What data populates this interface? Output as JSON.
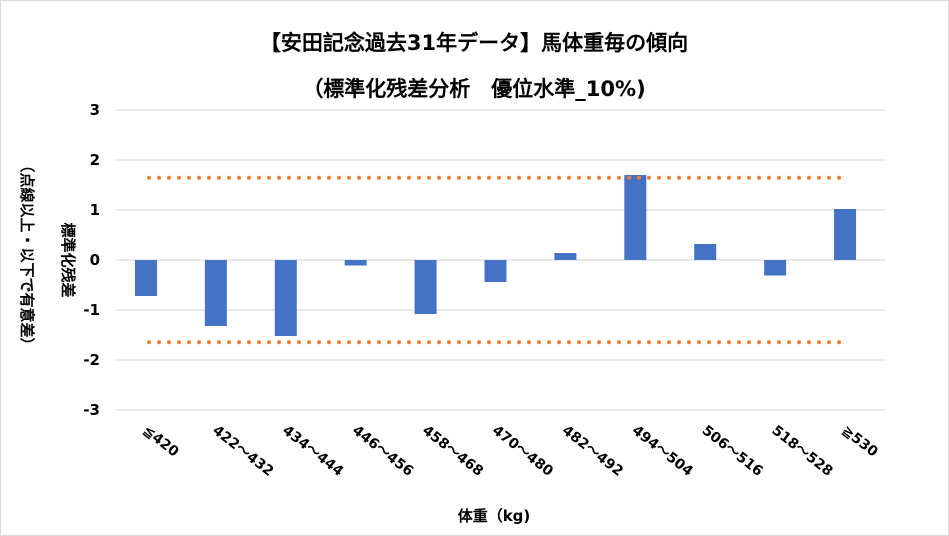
{
  "chart_data": {
    "type": "bar",
    "title": "【安田記念過去31年データ】馬体重毎の傾向",
    "subtitle": "（標準化残差分析　優位水準_10%)",
    "xlabel": "体重（kg)",
    "ylabel": "標準化残差",
    "ylabel2": "（点線以上・以下で有意差）",
    "categories": [
      "≦420",
      "422～432",
      "434～444",
      "446～456",
      "458～468",
      "470～480",
      "482～492",
      "494～504",
      "506～516",
      "518～528",
      "≧530"
    ],
    "values": [
      -0.72,
      -1.32,
      -1.52,
      -0.11,
      -1.08,
      -0.44,
      0.14,
      1.7,
      0.32,
      -0.31,
      1.02
    ],
    "ylim": [
      -3,
      3
    ],
    "yticks": [
      "3",
      "2",
      "1",
      "0",
      "-1",
      "-2",
      "-3"
    ],
    "thresholds": [
      1.645,
      -1.645
    ],
    "grid": true,
    "colors": {
      "bar": "#4472C4",
      "threshold": "#ED7D31",
      "grid": "#D9D9D9"
    }
  }
}
